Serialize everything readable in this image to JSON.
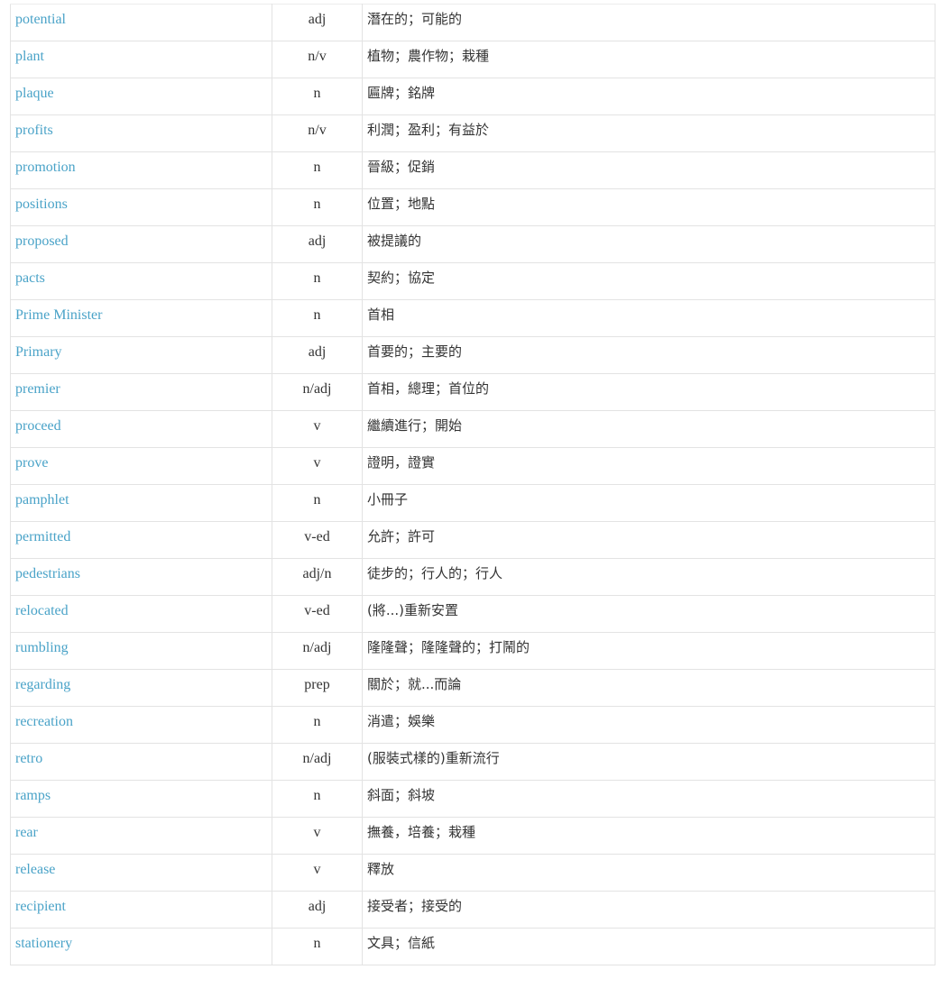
{
  "vocabulary": [
    {
      "word": "potential",
      "pos": "adj",
      "meaning": "潛在的；可能的"
    },
    {
      "word": "plant",
      "pos": "n/v",
      "meaning": "植物；農作物；栽種"
    },
    {
      "word": "plaque",
      "pos": "n",
      "meaning": "匾牌；銘牌"
    },
    {
      "word": "profits",
      "pos": "n/v",
      "meaning": "利潤；盈利；有益於"
    },
    {
      "word": "promotion",
      "pos": "n",
      "meaning": "晉級；促銷"
    },
    {
      "word": "positions",
      "pos": "n",
      "meaning": "位置；地點"
    },
    {
      "word": "proposed",
      "pos": "adj",
      "meaning": "被提議的"
    },
    {
      "word": "pacts",
      "pos": "n",
      "meaning": "契約；協定"
    },
    {
      "word": "Prime Minister",
      "pos": "n",
      "meaning": "首相"
    },
    {
      "word": "Primary",
      "pos": "adj",
      "meaning": "首要的；主要的"
    },
    {
      "word": "premier",
      "pos": "n/adj",
      "meaning": "首相，總理；首位的"
    },
    {
      "word": "proceed",
      "pos": "v",
      "meaning": "繼續進行；開始"
    },
    {
      "word": "prove",
      "pos": "v",
      "meaning": "證明，證實"
    },
    {
      "word": "pamphlet",
      "pos": "n",
      "meaning": "小冊子"
    },
    {
      "word": "permitted",
      "pos": "v-ed",
      "meaning": "允許；許可"
    },
    {
      "word": "pedestrians",
      "pos": "adj/n",
      "meaning": "徒步的；行人的；行人"
    },
    {
      "word": "relocated",
      "pos": "v-ed",
      "meaning": "(將...)重新安置"
    },
    {
      "word": "rumbling",
      "pos": "n/adj",
      "meaning": "隆隆聲；隆隆聲的；打鬧的"
    },
    {
      "word": "regarding",
      "pos": "prep",
      "meaning": "關於；就...而論"
    },
    {
      "word": "recreation",
      "pos": "n",
      "meaning": "消遣；娛樂"
    },
    {
      "word": "retro",
      "pos": "n/adj",
      "meaning": "(服裝式樣的)重新流行"
    },
    {
      "word": "ramps",
      "pos": "n",
      "meaning": "斜面；斜坡"
    },
    {
      "word": "rear",
      "pos": "v",
      "meaning": "撫養，培養；栽種"
    },
    {
      "word": "release",
      "pos": "v",
      "meaning": "釋放"
    },
    {
      "word": "recipient",
      "pos": "adj",
      "meaning": "接受者；接受的"
    },
    {
      "word": "stationery",
      "pos": "n",
      "meaning": "文具；信紙"
    }
  ],
  "colors": {
    "link": "#4aa3c8",
    "text": "#333333",
    "border": "#e3e3e3"
  }
}
